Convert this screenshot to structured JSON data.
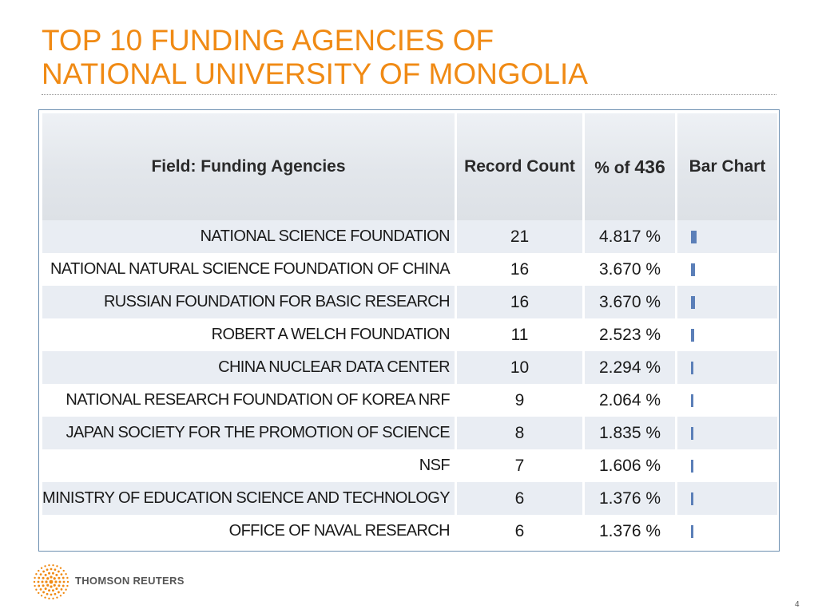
{
  "slide": {
    "title_line1": "TOP 10 FUNDING AGENCIES OF",
    "title_line2": "NATIONAL UNIVERSITY OF MONGOLIA",
    "page_number": "4"
  },
  "table": {
    "headers": {
      "agency": "Field: Funding Agencies",
      "count": "Record Count",
      "pct_prefix": "% of ",
      "pct_total": "436",
      "bar": "Bar Chart"
    },
    "rows": [
      {
        "agency": "NATIONAL SCIENCE FOUNDATION",
        "count": "21",
        "pct": "4.817 %",
        "share": 4.817
      },
      {
        "agency": "NATIONAL NATURAL SCIENCE FOUNDATION OF CHINA",
        "count": "16",
        "pct": "3.670 %",
        "share": 3.67
      },
      {
        "agency": "RUSSIAN FOUNDATION FOR BASIC RESEARCH",
        "count": "16",
        "pct": "3.670 %",
        "share": 3.67
      },
      {
        "agency": "ROBERT A WELCH FOUNDATION",
        "count": "11",
        "pct": "2.523 %",
        "share": 2.523
      },
      {
        "agency": "CHINA NUCLEAR DATA CENTER",
        "count": "10",
        "pct": "2.294 %",
        "share": 2.294
      },
      {
        "agency": "NATIONAL RESEARCH FOUNDATION OF KOREA NRF",
        "count": "9",
        "pct": "2.064 %",
        "share": 2.064
      },
      {
        "agency": "JAPAN SOCIETY FOR THE PROMOTION OF SCIENCE",
        "count": "8",
        "pct": "1.835 %",
        "share": 1.835
      },
      {
        "agency": "NSF",
        "count": "7",
        "pct": "1.606 %",
        "share": 1.606
      },
      {
        "agency": "MINISTRY OF EDUCATION SCIENCE AND TECHNOLOGY",
        "count": "6",
        "pct": "1.376 %",
        "share": 1.376
      },
      {
        "agency": "OFFICE OF NAVAL RESEARCH",
        "count": "6",
        "pct": "1.376 %",
        "share": 1.376
      }
    ],
    "bar_color": "#5b7fb8"
  },
  "footer": {
    "logo_text": "THOMSON REUTERS",
    "logo_icon": "thomson-reuters-logo-icon",
    "logo_color": "#f08a14"
  }
}
